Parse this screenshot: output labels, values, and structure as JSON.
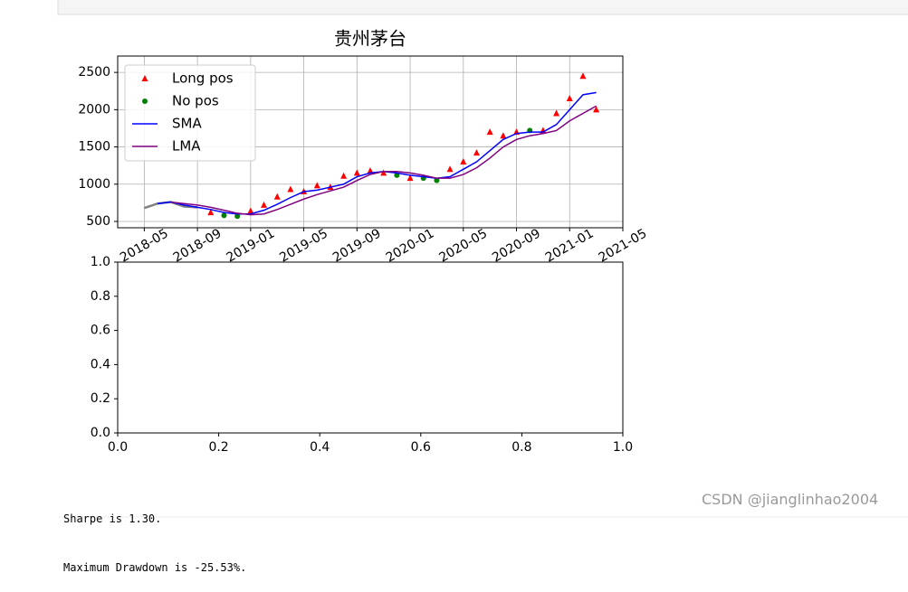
{
  "chart_data": [
    {
      "type": "line",
      "title": "贵州茅台",
      "x": [
        "2018-05",
        "2018-06",
        "2018-07",
        "2018-08",
        "2018-09",
        "2018-10",
        "2018-11",
        "2018-12",
        "2019-01",
        "2019-02",
        "2019-03",
        "2019-04",
        "2019-05",
        "2019-06",
        "2019-07",
        "2019-08",
        "2019-09",
        "2019-10",
        "2019-11",
        "2019-12",
        "2020-01",
        "2020-02",
        "2020-03",
        "2020-04",
        "2020-05",
        "2020-06",
        "2020-07",
        "2020-08",
        "2020-09",
        "2020-10",
        "2020-11",
        "2020-12",
        "2021-01",
        "2021-02",
        "2021-03"
      ],
      "series": [
        {
          "color": "#808080",
          "marker": "line",
          "values": [
            680,
            740,
            760,
            700,
            690,
            null,
            null,
            null,
            null,
            null,
            null,
            null,
            null,
            null,
            null,
            null,
            null,
            null,
            null,
            null,
            null,
            null,
            null,
            null,
            null,
            null,
            null,
            null,
            null,
            null,
            null,
            null,
            null,
            null,
            null
          ]
        },
        {
          "name": "Long pos",
          "color": "#ff0000",
          "marker": "triangle",
          "values": [
            null,
            null,
            null,
            null,
            null,
            620,
            null,
            null,
            640,
            720,
            830,
            930,
            900,
            980,
            960,
            1110,
            1150,
            1180,
            1150,
            null,
            1080,
            null,
            null,
            1200,
            1300,
            1420,
            1700,
            1650,
            1700,
            null,
            1720,
            1950,
            2150,
            2450,
            2000
          ]
        },
        {
          "name": "No pos",
          "color": "#008000",
          "marker": "circle",
          "values": [
            null,
            null,
            null,
            null,
            null,
            null,
            580,
            570,
            null,
            null,
            null,
            null,
            null,
            null,
            null,
            null,
            null,
            null,
            null,
            1120,
            null,
            1080,
            1050,
            null,
            null,
            null,
            null,
            null,
            null,
            1720,
            null,
            null,
            null,
            null,
            null
          ]
        },
        {
          "name": "SMA",
          "color": "#0000ff",
          "marker": "line",
          "values": [
            null,
            740,
            760,
            720,
            690,
            660,
            620,
            600,
            600,
            650,
            730,
            820,
            900,
            920,
            960,
            1000,
            1100,
            1150,
            1170,
            1150,
            1120,
            1100,
            1080,
            1100,
            1200,
            1300,
            1450,
            1600,
            1680,
            1700,
            1700,
            1800,
            2000,
            2200,
            2230
          ]
        },
        {
          "name": "LMA",
          "color": "#800080",
          "marker": "line",
          "values": [
            null,
            null,
            760,
            740,
            720,
            690,
            650,
            610,
            590,
            600,
            660,
            730,
            800,
            860,
            910,
            960,
            1050,
            1130,
            1170,
            1170,
            1150,
            1120,
            1080,
            1080,
            1130,
            1220,
            1350,
            1500,
            1600,
            1650,
            1680,
            1720,
            1850,
            1950,
            2050
          ]
        }
      ],
      "xlim": [
        "2018-03",
        "2021-05"
      ],
      "xticks": [
        "2018-05",
        "2018-09",
        "2019-01",
        "2019-05",
        "2019-09",
        "2020-01",
        "2020-05",
        "2020-09",
        "2021-01",
        "2021-05"
      ],
      "ylim": [
        415,
        2720
      ],
      "yticks": [
        500,
        1000,
        1500,
        2000,
        2500
      ],
      "grid": true,
      "legend": "upper-left"
    },
    {
      "type": "empty",
      "xlim": [
        0,
        1
      ],
      "ylim": [
        0,
        1
      ],
      "xticks": [
        {
          "value": 0,
          "label": "0.0"
        },
        {
          "value": 0.2,
          "label": "0.2"
        },
        {
          "value": 0.4,
          "label": "0.4"
        },
        {
          "value": 0.6,
          "label": "0.6"
        },
        {
          "value": 0.8,
          "label": "0.8"
        },
        {
          "value": 1,
          "label": "1.0"
        }
      ],
      "yticks": [
        {
          "value": 0,
          "label": "0.0"
        },
        {
          "value": 0.2,
          "label": "0.2"
        },
        {
          "value": 0.4,
          "label": "0.4"
        },
        {
          "value": 0.6,
          "label": "0.6"
        },
        {
          "value": 0.8,
          "label": "0.8"
        },
        {
          "value": 1,
          "label": "1.0"
        }
      ],
      "grid": false
    }
  ],
  "output": {
    "lines": [
      "Sharpe is 1.30.",
      "Maximum Drawdown is -25.53%."
    ]
  },
  "watermark": "CSDN @jianglinhao2004"
}
